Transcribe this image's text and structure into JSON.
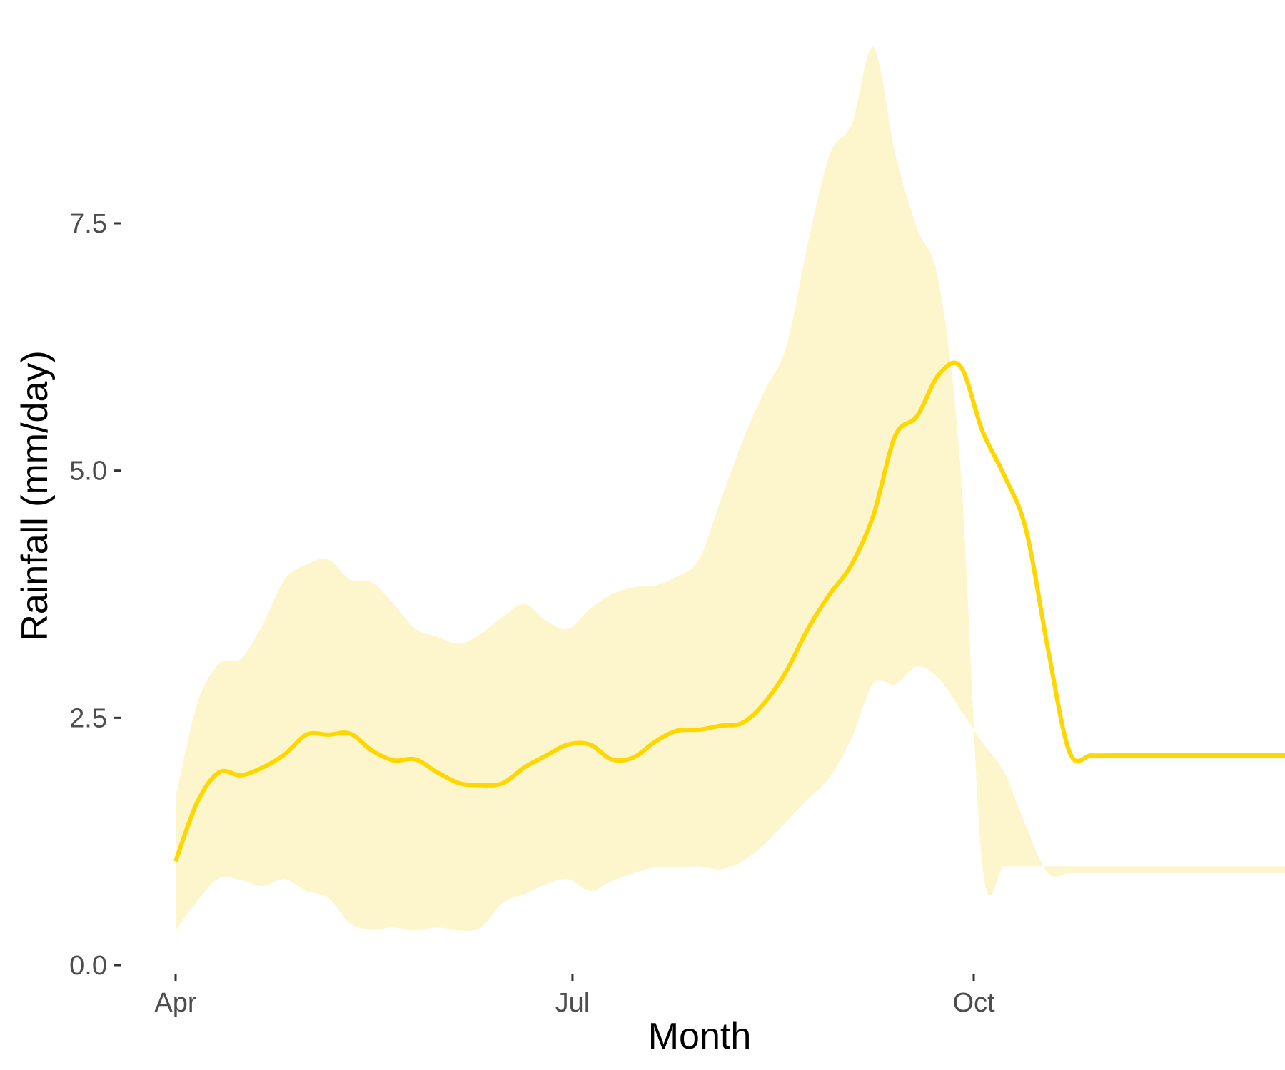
{
  "chart_data": {
    "type": "area",
    "title": "",
    "xlabel": "Month",
    "ylabel": "Rainfall (mm/day)",
    "x_ticks": [
      "Apr",
      "Jul",
      "Oct"
    ],
    "x_tick_positions": [
      "2021-04-01",
      "2021-07-01",
      "2021-10-01"
    ],
    "x_range": [
      "2021-04-01",
      "2021-12-31"
    ],
    "y_ticks": [
      0.0,
      2.5,
      5.0,
      7.5
    ],
    "ylim": [
      0,
      9.2
    ],
    "grid": false,
    "legend": "none",
    "colors": {
      "line": "#FFD700",
      "band": "#FDF5CC"
    },
    "x": [
      "2021-04-01",
      "2021-04-06",
      "2021-04-11",
      "2021-04-16",
      "2021-04-21",
      "2021-04-26",
      "2021-05-01",
      "2021-05-06",
      "2021-05-11",
      "2021-05-16",
      "2021-05-21",
      "2021-05-26",
      "2021-05-31",
      "2021-06-05",
      "2021-06-10",
      "2021-06-15",
      "2021-06-20",
      "2021-06-25",
      "2021-06-30",
      "2021-07-05",
      "2021-07-10",
      "2021-07-15",
      "2021-07-20",
      "2021-07-25",
      "2021-07-30",
      "2021-08-04",
      "2021-08-09",
      "2021-08-14",
      "2021-08-19",
      "2021-08-24",
      "2021-08-29",
      "2021-09-03",
      "2021-09-08",
      "2021-09-13",
      "2021-09-18",
      "2021-09-23",
      "2021-09-28",
      "2021-10-03",
      "2021-10-08",
      "2021-10-13",
      "2021-10-18",
      "2021-10-23",
      "2021-10-28",
      "2021-11-02",
      "2021-11-07",
      "2021-11-12",
      "2021-11-17",
      "2021-11-22",
      "2021-11-27",
      "2021-12-02",
      "2021-12-07",
      "2021-12-12",
      "2021-12-17",
      "2021-12-22",
      "2021-12-27",
      "2021-12-31"
    ],
    "series": [
      {
        "values": [
          1.05,
          1.65,
          1.95,
          1.92,
          2.0,
          2.13,
          2.33,
          2.33,
          2.34,
          2.17,
          2.07,
          2.08,
          1.95,
          1.84,
          1.82,
          1.84,
          2.0,
          2.12,
          2.23,
          2.23,
          2.08,
          2.1,
          2.26,
          2.37,
          2.38,
          2.42,
          2.45,
          2.65,
          2.97,
          3.4,
          3.75,
          4.05,
          4.55,
          5.35,
          5.55,
          5.97,
          6.05,
          5.4,
          4.95,
          4.4,
          3.2,
          2.15,
          2.12,
          2.12,
          2.12,
          2.12,
          2.12,
          2.12,
          2.12,
          2.12,
          2.12,
          2.12,
          2.12,
          2.12,
          2.12,
          2.12
        ]
      },
      {
        "values": [
          0.35,
          0.65,
          0.88,
          0.86,
          0.8,
          0.87,
          0.75,
          0.68,
          0.42,
          0.36,
          0.38,
          0.35,
          0.38,
          0.35,
          0.38,
          0.63,
          0.72,
          0.82,
          0.87,
          0.75,
          0.85,
          0.93,
          0.99,
          0.99,
          1.0,
          0.97,
          1.05,
          1.22,
          1.45,
          1.68,
          1.9,
          2.3,
          2.85,
          2.84,
          3.02,
          2.9,
          2.58,
          2.25,
          1.95,
          1.4,
          0.93,
          0.93,
          0.93,
          0.93,
          0.93,
          0.93,
          0.93,
          0.93,
          0.93,
          0.93,
          0.93,
          0.93,
          0.93,
          0.93,
          0.93,
          0.93
        ]
      },
      {
        "values": [
          1.7,
          2.65,
          3.05,
          3.1,
          3.45,
          3.9,
          4.05,
          4.1,
          3.9,
          3.87,
          3.65,
          3.4,
          3.32,
          3.25,
          3.35,
          3.52,
          3.65,
          3.48,
          3.4,
          3.6,
          3.75,
          3.82,
          3.84,
          3.93,
          4.1,
          4.7,
          5.3,
          5.8,
          6.25,
          7.3,
          8.2,
          8.5,
          9.28,
          8.2,
          7.45,
          6.9,
          5.0,
          1.0,
          1.0,
          1.0,
          1.0,
          1.0,
          1.0,
          1.0,
          1.0,
          1.0,
          1.0,
          1.0,
          1.0,
          1.0,
          1.0,
          1.0,
          1.0,
          1.0,
          1.0,
          1.0
        ]
      }
    ]
  }
}
